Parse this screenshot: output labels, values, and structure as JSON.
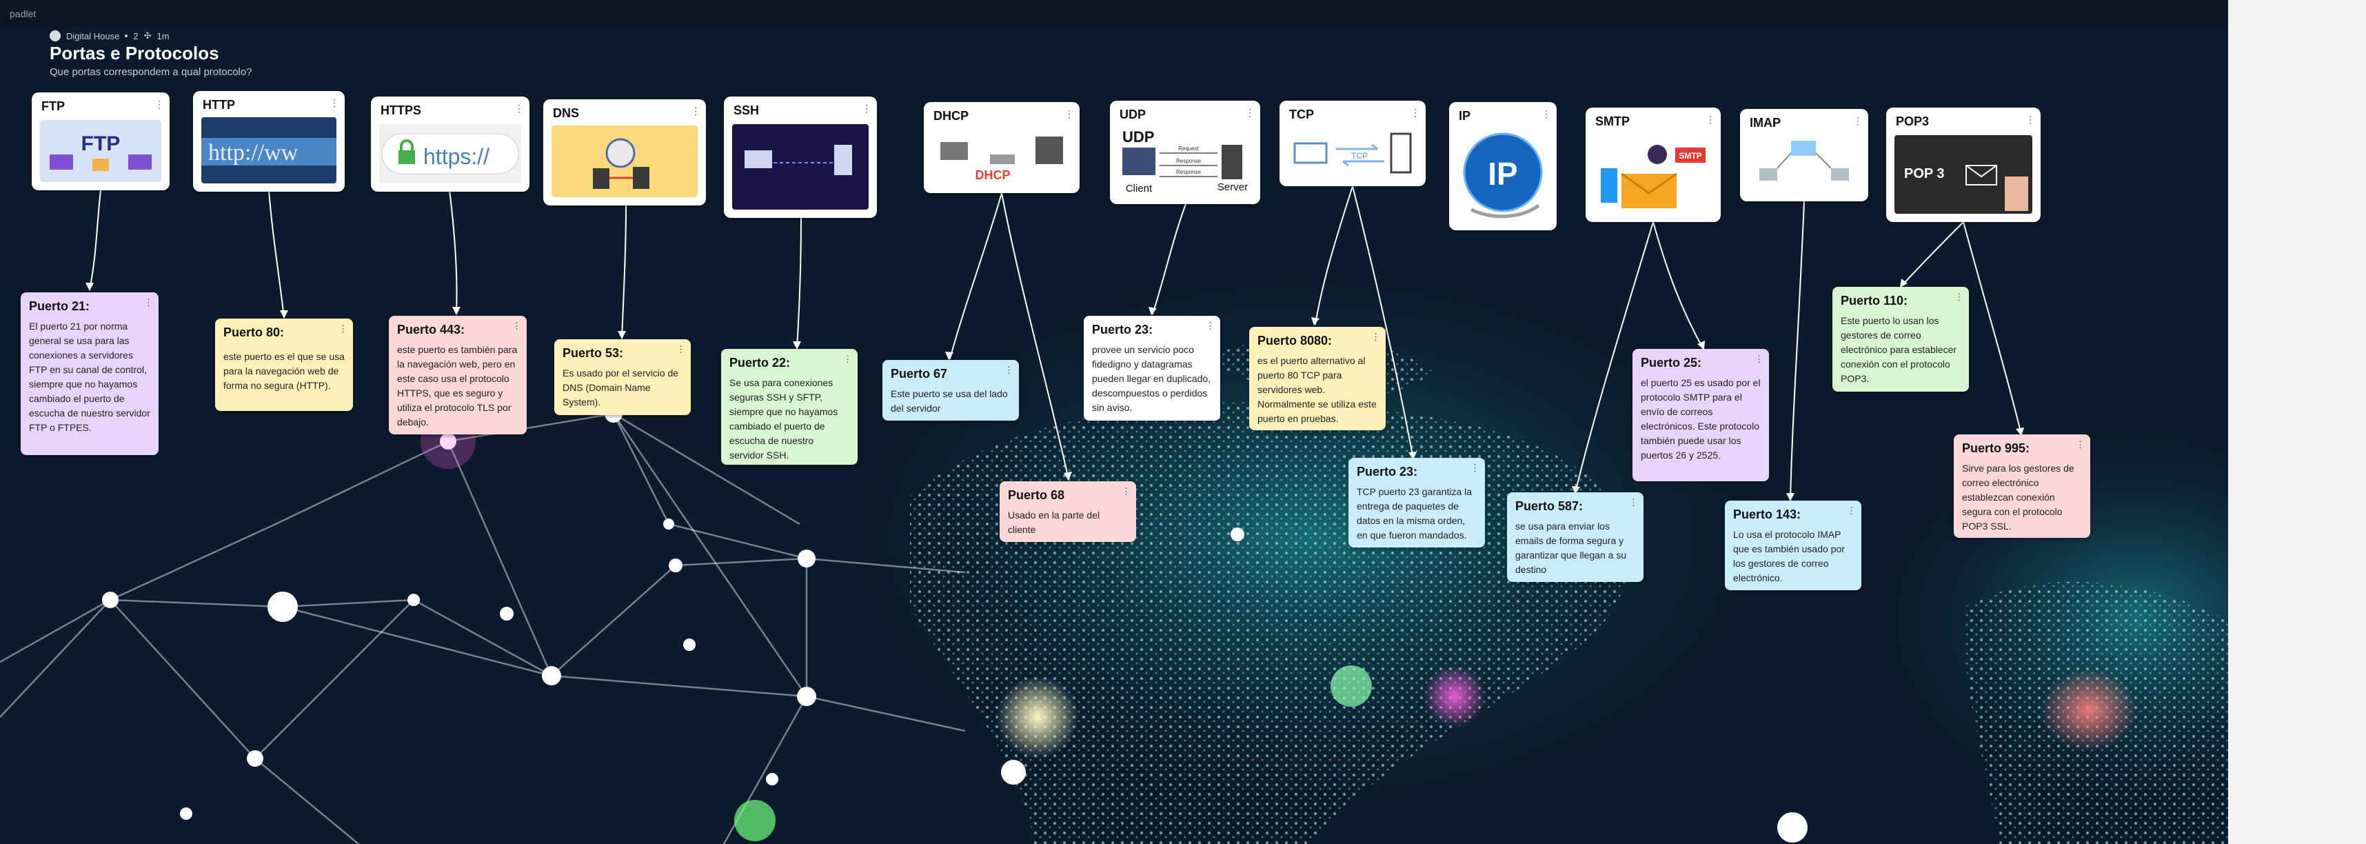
{
  "app": {
    "logo": "padlet"
  },
  "board": {
    "author": "Digital House",
    "comments": "2",
    "time": "1m",
    "title": "Portas e Protocolos",
    "subtitle": "Que portas correspondem a qual protocolo?"
  },
  "cards": [
    {
      "title": "FTP",
      "icon": "ftp-image"
    },
    {
      "title": "HTTP",
      "icon": "http-image"
    },
    {
      "title": "HTTPS",
      "icon": "https-image"
    },
    {
      "title": "DNS",
      "icon": "dns-image"
    },
    {
      "title": "SSH",
      "icon": "ssh-image"
    },
    {
      "title": "DHCP",
      "icon": "dhcp-image"
    },
    {
      "title": "UDP",
      "icon": "udp-image"
    },
    {
      "title": "TCP",
      "icon": "tcp-image"
    },
    {
      "title": "IP",
      "icon": "ip-image"
    },
    {
      "title": "SMTP",
      "icon": "smtp-image"
    },
    {
      "title": "IMAP",
      "icon": "imap-image"
    },
    {
      "title": "POP3",
      "icon": "pop3-image"
    }
  ],
  "thumb_text": {
    "ftp": "FTP",
    "http": "http://ww",
    "https": "https://",
    "udp_title": "UDP",
    "udp_request": "Request",
    "udp_response1": "Response",
    "udp_response2": "Response",
    "udp_client": "Client",
    "udp_server": "Server",
    "dhcp": "DHCP",
    "tcp": "TCP",
    "ip": "IP",
    "smtp": "SMTP",
    "pop3": "POP 3"
  },
  "notes": [
    {
      "title": "Puerto 21:",
      "body": "El puerto 21 por norma general se usa para las conexiones a servidores FTP en su canal de control, siempre que no hayamos cambiado el puerto de escucha de nuestro servidor FTP o FTPES.",
      "color": "#e8d4f8"
    },
    {
      "title": "Puerto 80:",
      "body": "este puerto es el que se usa para la navegación web de forma no segura (HTTP).",
      "color": "#fdf0b8"
    },
    {
      "title": "Puerto 443:",
      "body": "este puerto es también para la navegación web, pero en este caso usa el protocolo HTTPS, que es seguro y utiliza el protocolo TLS por debajo.",
      "color": "#fbd7d7"
    },
    {
      "title": "Puerto 53:",
      "body": "Es usado por el servicio de DNS (Domain Name System).",
      "color": "#fdf0b8"
    },
    {
      "title": "Puerto 22:",
      "body": "Se usa para conexiones seguras SSH y SFTP, siempre que no hayamos cambiado el puerto de escucha de nuestro servidor SSH.",
      "color": "#d8f5d2"
    },
    {
      "title": "Puerto 67",
      "body": "Este puerto se usa del lado del servidor",
      "color": "#c9ecfb"
    },
    {
      "title": "Puerto 68",
      "body": "Usado en la parte del cliente",
      "color": "#fbd7d7"
    },
    {
      "title": "Puerto 23:",
      "body": "provee un servicio poco fidedigno y datagramas pueden llegar en duplicado, descompuestos o perdidos sin aviso.",
      "color": "#ffffff"
    },
    {
      "title": "Puerto 8080:",
      "body": "es el puerto alternativo al puerto 80 TCP para servidores web. Normalmente se utiliza este puerto en pruebas.",
      "color": "#fdf0b8"
    },
    {
      "title": "Puerto 23:",
      "body": "TCP puerto 23 garantiza la entrega de paquetes de datos en la misma orden, en que fueron mandados.",
      "color": "#c9ecfb"
    },
    {
      "title": "Puerto 25:",
      "body": " el puerto 25 es usado por el protocolo SMTP para el envío de correos electrónicos. Este protocolo también puede usar los puertos 26 y 2525.",
      "color": "#e8d4f8"
    },
    {
      "title": "Puerto 587:",
      "body": "se usa para enviar los emails de forma segura y garantizar que llegan a su destino",
      "color": "#c9ecfb"
    },
    {
      "title": "Puerto 143:",
      "body": "Lo usa el protocolo IMAP que es también usado por los gestores de correo electrónico.",
      "color": "#c9ecfb"
    },
    {
      "title": "Puerto 110:",
      "body": "Este puerto lo usan los gestores de correo electrónico para establecer conexión con el protocolo POP3.",
      "color": "#d8f5d2"
    },
    {
      "title": "Puerto 995:",
      "body": "Sirve para los gestores de correo electrónico establezcan conexión segura con el protocolo POP3 SSL.",
      "color": "#fbd7d7"
    }
  ],
  "colors": {
    "background": "#0b1a2c",
    "accent": "#2ec4c4",
    "line": "#ffffff"
  }
}
